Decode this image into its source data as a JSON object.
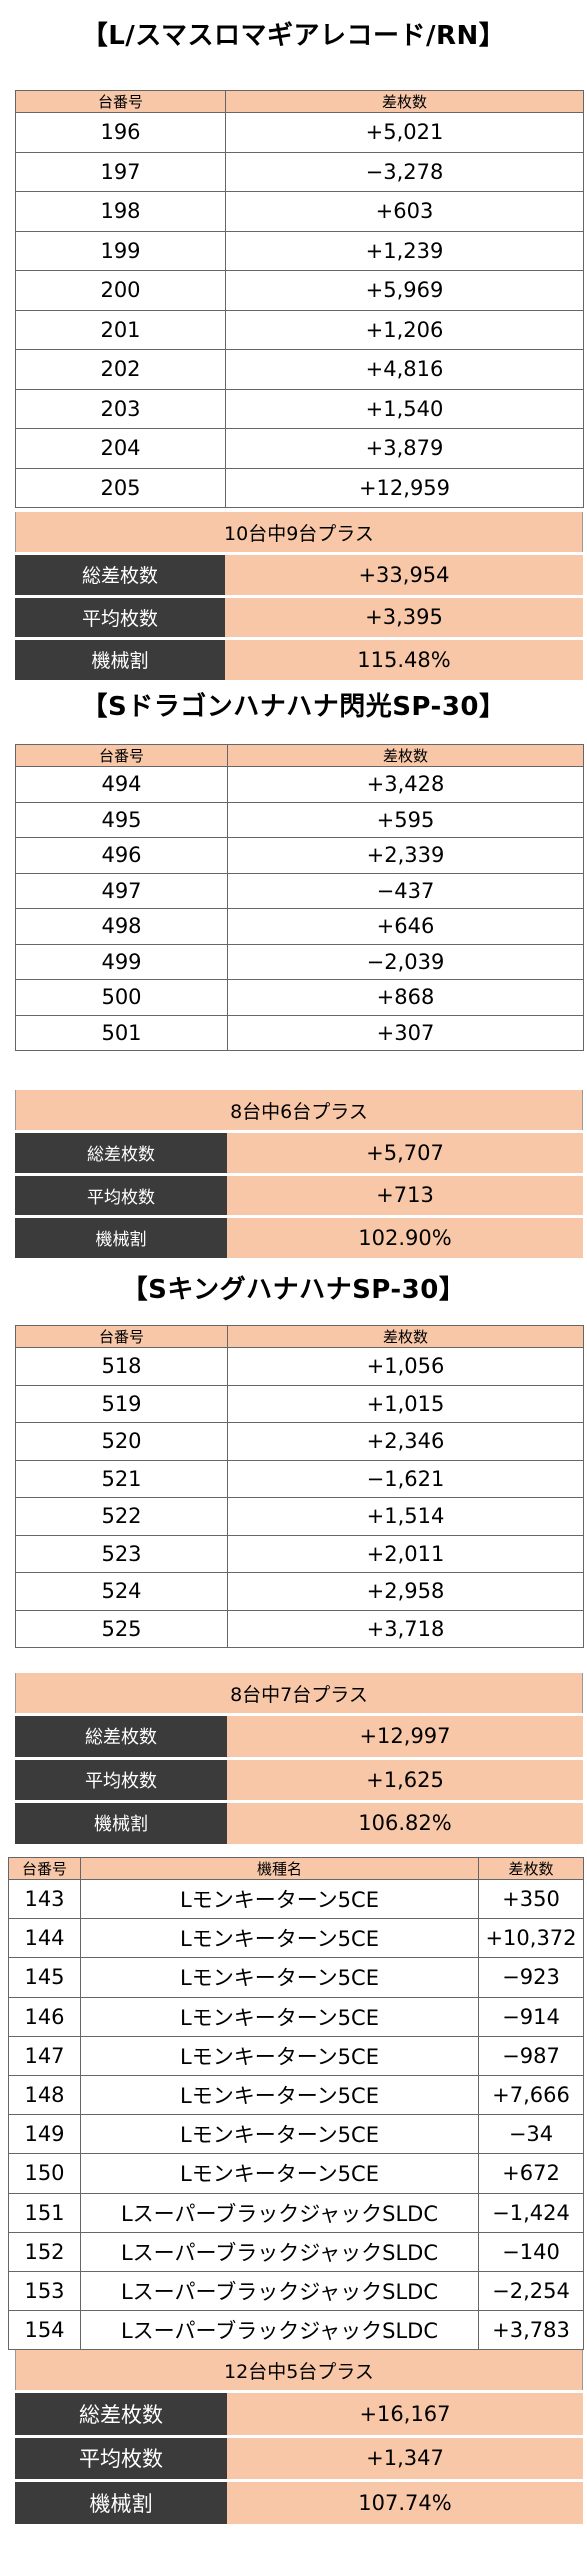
{
  "sections": [
    {
      "title": "【L/スマスロマギアレコード/RN】",
      "col_headers": [
        "台番号",
        "差枚数"
      ],
      "rows": [
        [
          "196",
          "+5,021"
        ],
        [
          "197",
          "−3,278"
        ],
        [
          "198",
          "+603"
        ],
        [
          "199",
          "+1,239"
        ],
        [
          "200",
          "+5,969"
        ],
        [
          "201",
          "+1,206"
        ],
        [
          "202",
          "+4,816"
        ],
        [
          "203",
          "+1,540"
        ],
        [
          "204",
          "+3,879"
        ],
        [
          "205",
          "+12,959"
        ]
      ],
      "summary": {
        "plus_text": "10台中9台プラス",
        "rows": [
          {
            "label": "総差枚数",
            "value": "+33,954"
          },
          {
            "label": "平均枚数",
            "value": "+3,395"
          },
          {
            "label": "機械割",
            "value": "115.48%"
          }
        ]
      }
    },
    {
      "title": "【Sドラゴンハナハナ閃光SP-30】",
      "col_headers": [
        "台番号",
        "差枚数"
      ],
      "rows": [
        [
          "494",
          "+3,428"
        ],
        [
          "495",
          "+595"
        ],
        [
          "496",
          "+2,339"
        ],
        [
          "497",
          "−437"
        ],
        [
          "498",
          "+646"
        ],
        [
          "499",
          "−2,039"
        ],
        [
          "500",
          "+868"
        ],
        [
          "501",
          "+307"
        ]
      ],
      "summary": {
        "plus_text": "8台中6台プラス",
        "rows": [
          {
            "label": "総差枚数",
            "value": "+5,707"
          },
          {
            "label": "平均枚数",
            "value": "+713"
          },
          {
            "label": "機械割",
            "value": "102.90%"
          }
        ]
      }
    },
    {
      "title": "【SキングハナハナSP-30】",
      "col_headers": [
        "台番号",
        "差枚数"
      ],
      "rows": [
        [
          "518",
          "+1,056"
        ],
        [
          "519",
          "+1,015"
        ],
        [
          "520",
          "+2,346"
        ],
        [
          "521",
          "−1,621"
        ],
        [
          "522",
          "+1,514"
        ],
        [
          "523",
          "+2,011"
        ],
        [
          "524",
          "+2,958"
        ],
        [
          "525",
          "+3,718"
        ]
      ],
      "summary": {
        "plus_text": "8台中7台プラス",
        "rows": [
          {
            "label": "総差枚数",
            "value": "+12,997"
          },
          {
            "label": "平均枚数",
            "value": "+1,625"
          },
          {
            "label": "機械割",
            "value": "106.82%"
          }
        ]
      }
    },
    {
      "title": "",
      "col_headers": [
        "台番号",
        "機種名",
        "差枚数"
      ],
      "rows": [
        [
          "143",
          "Lモンキーターン5CE",
          "+350"
        ],
        [
          "144",
          "Lモンキーターン5CE",
          "+10,372"
        ],
        [
          "145",
          "Lモンキーターン5CE",
          "−923"
        ],
        [
          "146",
          "Lモンキーターン5CE",
          "−914"
        ],
        [
          "147",
          "Lモンキーターン5CE",
          "−987"
        ],
        [
          "148",
          "Lモンキーターン5CE",
          "+7,666"
        ],
        [
          "149",
          "Lモンキーターン5CE",
          "−34"
        ],
        [
          "150",
          "Lモンキーターン5CE",
          "+672"
        ],
        [
          "151",
          "LスーパーブラックジャックSLDC",
          "−1,424"
        ],
        [
          "152",
          "LスーパーブラックジャックSLDC",
          "−140"
        ],
        [
          "153",
          "LスーパーブラックジャックSLDC",
          "−2,254"
        ],
        [
          "154",
          "LスーパーブラックジャックSLDC",
          "+3,783"
        ]
      ],
      "summary": {
        "plus_text": "12台中5台プラス",
        "rows": [
          {
            "label": "総差枚数",
            "value": "+16,167"
          },
          {
            "label": "平均枚数",
            "value": "+1,347"
          },
          {
            "label": "機械割",
            "value": "107.74%"
          }
        ]
      }
    }
  ]
}
